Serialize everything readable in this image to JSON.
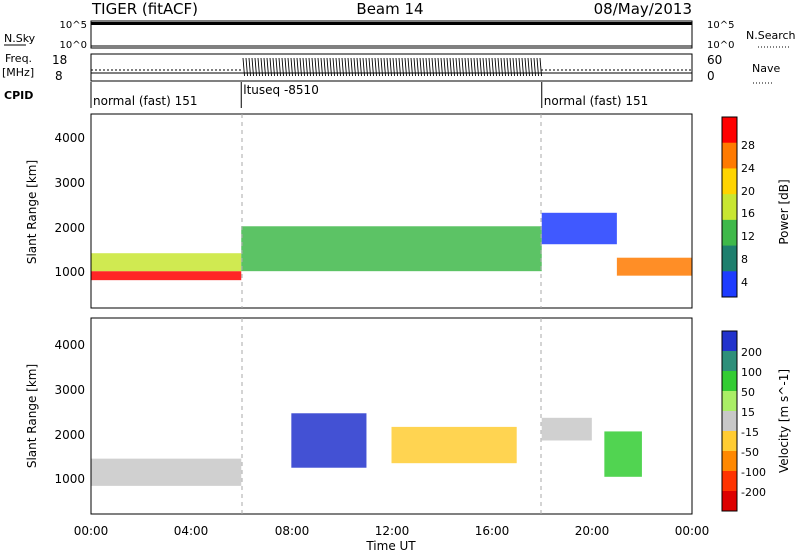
{
  "header": {
    "station": "TIGER (fitACF)",
    "beam": "Beam 14",
    "date": "08/May/2013"
  },
  "status_panels": {
    "nsky_label": "N.Sky",
    "nsky_ticks": [
      "10^5",
      "10^0"
    ],
    "nsearch_label": "N.Search",
    "nsearch_ticks": [
      "10^5",
      "10^0"
    ],
    "freq_label": "Freq.",
    "freq_unit": "[MHz]",
    "freq_ticks": [
      "18",
      "8"
    ],
    "nave_label": "Nave",
    "nave_ticks": [
      "60",
      "0"
    ],
    "cpid_label": "CPID",
    "modes": [
      {
        "label": "normal (fast) 151",
        "start_hour": 0,
        "end_hour": 6
      },
      {
        "label": "ltuseq -8510",
        "start_hour": 6,
        "end_hour": 18
      },
      {
        "label": "normal (fast) 151",
        "start_hour": 18,
        "end_hour": 24
      }
    ]
  },
  "x_axis": {
    "label": "Time UT",
    "ticks": [
      "00:00",
      "04:00",
      "08:00",
      "12:00",
      "16:00",
      "20:00",
      "00:00"
    ]
  },
  "power_panel": {
    "ylabel": "Slant Range [km]",
    "yticks": [
      "1000",
      "2000",
      "3000",
      "4000"
    ],
    "colorbar_label": "Power [dB]",
    "colorbar_ticks": [
      "28",
      "24",
      "20",
      "16",
      "12",
      "8",
      "4"
    ],
    "colors": [
      "#ff0000",
      "#ff7a00",
      "#ffd400",
      "#c8e632",
      "#3fb84a",
      "#1e7f6e",
      "#1e3cff"
    ]
  },
  "velocity_panel": {
    "ylabel": "Slant Range [km]",
    "yticks": [
      "1000",
      "2000",
      "3000",
      "4000"
    ],
    "colorbar_label": "Velocity [m s^-1]",
    "colorbar_ticks": [
      "200",
      "100",
      "50",
      "15",
      "-15",
      "-50",
      "-100",
      "-200"
    ],
    "colors": [
      "#2233cc",
      "#2e8f7a",
      "#33cc33",
      "#aaee66",
      "#c8c8c8",
      "#ffcc33",
      "#ff8800",
      "#ff3300",
      "#dd0000"
    ]
  },
  "chart_data": {
    "type": "heatmap",
    "x_range_hours": [
      0,
      24
    ],
    "y_range_km": [
      180,
      4500
    ],
    "power_features_db": [
      {
        "from_hour": 0,
        "to_hour": 6,
        "range_km": [
          800,
          1000
        ],
        "power_db": 28
      },
      {
        "from_hour": 0,
        "to_hour": 6,
        "range_km": [
          1000,
          1400
        ],
        "power_db": 18
      },
      {
        "from_hour": 6,
        "to_hour": 18,
        "range_km": [
          1000,
          2000
        ],
        "power_db": 14
      },
      {
        "from_hour": 18,
        "to_hour": 21,
        "range_km": [
          1600,
          2300
        ],
        "power_db": 6
      },
      {
        "from_hour": 21,
        "to_hour": 24,
        "range_km": [
          900,
          1300
        ],
        "power_db": 26
      }
    ],
    "velocity_features_mps": [
      {
        "from_hour": 0,
        "to_hour": 6,
        "range_km": [
          800,
          1400
        ],
        "velocity": 0
      },
      {
        "from_hour": 8,
        "to_hour": 11,
        "range_km": [
          1200,
          2400
        ],
        "velocity": 180
      },
      {
        "from_hour": 12,
        "to_hour": 17,
        "range_km": [
          1300,
          2100
        ],
        "velocity": -40
      },
      {
        "from_hour": 18,
        "to_hour": 20,
        "range_km": [
          1800,
          2300
        ],
        "velocity": 0
      },
      {
        "from_hour": 20.5,
        "to_hour": 22,
        "range_km": [
          1000,
          2000
        ],
        "velocity": 60
      }
    ]
  }
}
